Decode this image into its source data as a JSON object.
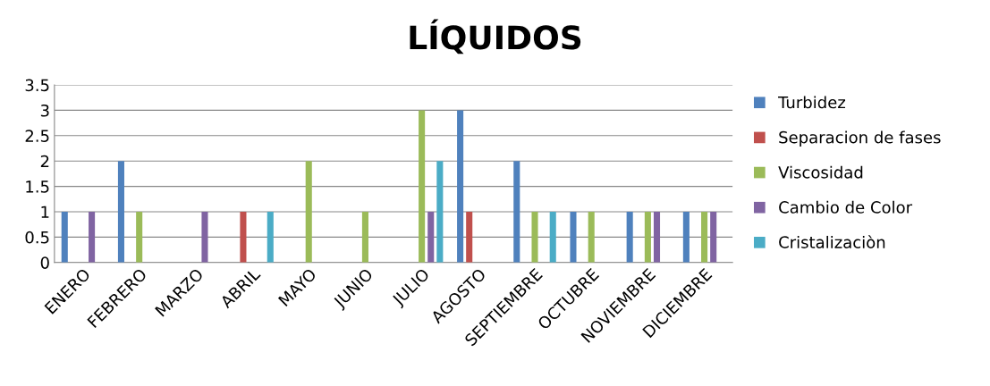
{
  "chart_data": {
    "type": "bar",
    "title": "LÍQUIDOS",
    "categories": [
      "ENERO",
      "FEBRERO",
      "MARZO",
      "ABRIL",
      "MAYO",
      "JUNIO",
      "JULIO",
      "AGOSTO",
      "SEPTIEMBRE",
      "OCTUBRE",
      "NOVIEMBRE",
      "DICIEMBRE"
    ],
    "series": [
      {
        "name": "Turbidez",
        "color": "#4f81bd",
        "values": [
          1,
          2,
          0,
          0,
          0,
          0,
          0,
          3,
          2,
          1,
          1,
          1
        ]
      },
      {
        "name": "Separacion de fases",
        "color": "#c0504d",
        "values": [
          0,
          0,
          0,
          1,
          0,
          0,
          0,
          1,
          0,
          0,
          0,
          0
        ]
      },
      {
        "name": "Viscosidad",
        "color": "#9bbb59",
        "values": [
          0,
          1,
          0,
          0,
          2,
          1,
          3,
          0,
          1,
          1,
          1,
          1
        ]
      },
      {
        "name": "Cambio de Color",
        "color": "#8064a2",
        "values": [
          1,
          0,
          1,
          0,
          0,
          0,
          1,
          0,
          0,
          0,
          1,
          1
        ]
      },
      {
        "name": "Cristalizaciòn",
        "color": "#4bacc6",
        "values": [
          0,
          0,
          0,
          1,
          0,
          0,
          2,
          0,
          1,
          0,
          0,
          0
        ]
      }
    ],
    "ylim": [
      0,
      3.5
    ],
    "yticks": [
      0,
      0.5,
      1,
      1.5,
      2,
      2.5,
      3,
      3.5
    ],
    "grid": "y",
    "legend": "right"
  }
}
